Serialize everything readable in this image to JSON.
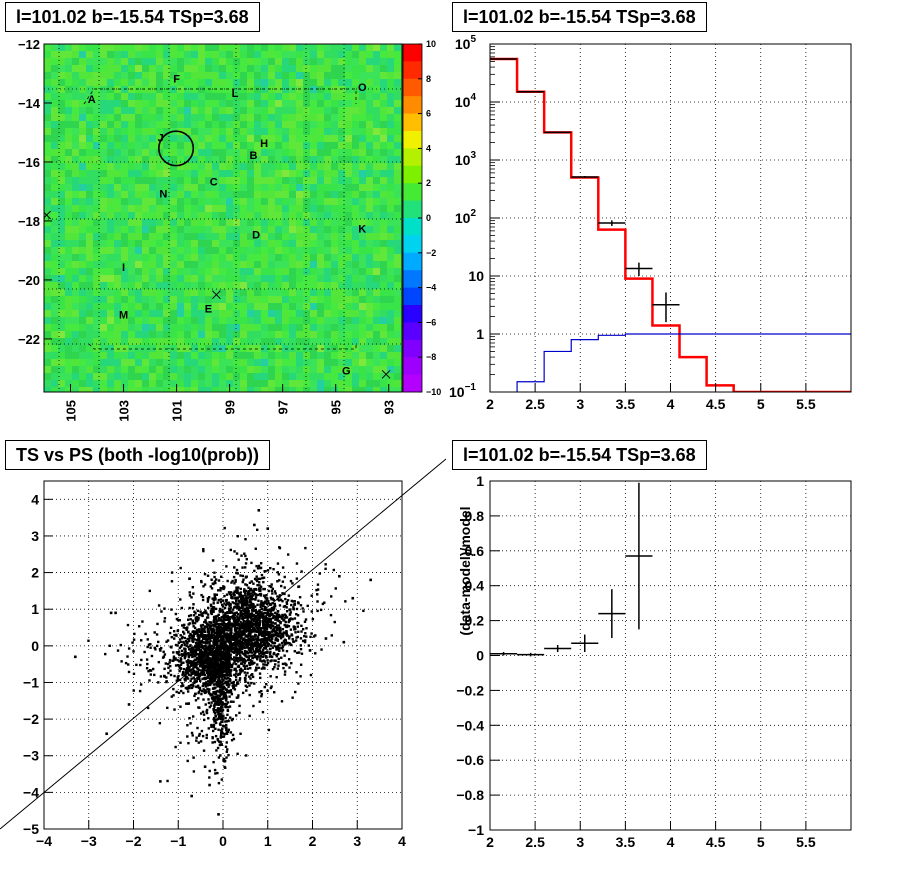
{
  "titles": {
    "map": "l=101.02 b=-15.54 TSp=3.68",
    "spectrum": "l=101.02 b=-15.54 TSp=3.68",
    "scatter": "TS vs PS (both -log10(prob))",
    "residual": "l=101.02 b=-15.54 TSp=3.68"
  },
  "chart_data": [
    {
      "id": "map",
      "type": "heatmap",
      "title": "l=101.02 b=-15.54 TSp=3.68",
      "xlim": [
        106,
        92.5
      ],
      "ylim": [
        -23.8,
        -12
      ],
      "x_ticks": [
        105,
        103,
        101,
        99,
        97,
        95,
        93
      ],
      "y_ticks": [
        -12,
        -14,
        -16,
        -18,
        -20,
        -22
      ],
      "colorbar": {
        "range": [
          -10,
          10
        ],
        "ticks": [
          10,
          8,
          6,
          4,
          2,
          0,
          -2,
          -4,
          -6,
          -8,
          -10
        ]
      },
      "labels": [
        {
          "text": "A",
          "x": 104.2,
          "y": -14.0
        },
        {
          "text": "F",
          "x": 101.0,
          "y": -13.3
        },
        {
          "text": "L",
          "x": 98.8,
          "y": -13.8
        },
        {
          "text": "O",
          "x": 94.0,
          "y": -13.6
        },
        {
          "text": "J",
          "x": 101.6,
          "y": -15.3
        },
        {
          "text": "H",
          "x": 97.7,
          "y": -15.5
        },
        {
          "text": "B",
          "x": 98.1,
          "y": -15.9
        },
        {
          "text": "C",
          "x": 99.6,
          "y": -16.8
        },
        {
          "text": "N",
          "x": 101.5,
          "y": -17.2
        },
        {
          "text": "D",
          "x": 98.0,
          "y": -18.6
        },
        {
          "text": "K",
          "x": 94.0,
          "y": -18.4
        },
        {
          "text": "I",
          "x": 103.0,
          "y": -19.7
        },
        {
          "text": "M",
          "x": 103.0,
          "y": -21.3
        },
        {
          "text": "E",
          "x": 99.8,
          "y": -21.1
        },
        {
          "text": "G",
          "x": 94.6,
          "y": -23.2
        }
      ],
      "circle": {
        "x": 101.02,
        "y": -15.54,
        "r": 0.65
      },
      "crosses": [
        {
          "x": 105.9,
          "y": -17.8
        },
        {
          "x": 99.5,
          "y": -20.5
        },
        {
          "x": 93.1,
          "y": -23.2
        }
      ]
    },
    {
      "id": "spectrum",
      "type": "line",
      "title": "l=101.02 b=-15.54 TSp=3.68",
      "xlim": [
        2,
        6
      ],
      "ylim": [
        0.1,
        100000
      ],
      "log_y": true,
      "x_ticks": [
        2,
        2.5,
        3,
        3.5,
        4,
        4.5,
        5,
        5.5
      ],
      "y_ticks": [
        {
          "v": 100000,
          "base": "10",
          "exp": "5"
        },
        {
          "v": 10000,
          "base": "10",
          "exp": "4"
        },
        {
          "v": 1000,
          "base": "10",
          "exp": "3"
        },
        {
          "v": 100,
          "base": "10",
          "exp": "2"
        },
        {
          "v": 10,
          "base": "10",
          "exp": ""
        },
        {
          "v": 1,
          "base": "1",
          "exp": ""
        },
        {
          "v": 0.1,
          "base": "10",
          "exp": "−1"
        }
      ],
      "bin_edges": [
        2.0,
        2.3,
        2.6,
        2.9,
        3.2,
        3.5,
        3.8,
        4.1,
        4.4,
        4.7,
        5.0,
        5.3,
        5.6,
        6.0
      ],
      "series": [
        {
          "values": [
            55000,
            15000,
            3000,
            500,
            63,
            9,
            1.4,
            0.4,
            0.13,
            0.1,
            0.1,
            0.1,
            0.1
          ],
          "color": "#ff0000"
        },
        {
          "values": [
            0.07,
            0.15,
            0.5,
            0.8,
            0.95,
            1.0,
            1.0,
            1.0,
            1.0,
            1.0,
            1.0,
            1.0,
            1.0
          ],
          "color": "#0000cc"
        }
      ],
      "data_points": [
        {
          "x": 2.15,
          "y": 55000,
          "xerr": 0.15,
          "ylo": 54500,
          "yhi": 55500
        },
        {
          "x": 2.45,
          "y": 15000,
          "xerr": 0.15,
          "ylo": 14800,
          "yhi": 15200
        },
        {
          "x": 2.75,
          "y": 3000,
          "xerr": 0.15,
          "ylo": 2940,
          "yhi": 3060
        },
        {
          "x": 3.05,
          "y": 510,
          "xerr": 0.15,
          "ylo": 490,
          "yhi": 530
        },
        {
          "x": 3.35,
          "y": 82,
          "xerr": 0.15,
          "ylo": 73,
          "yhi": 91
        },
        {
          "x": 3.65,
          "y": 13.5,
          "xerr": 0.15,
          "ylo": 10,
          "yhi": 17
        },
        {
          "x": 3.95,
          "y": 3.2,
          "xerr": 0.15,
          "ylo": 1.6,
          "yhi": 5.2
        }
      ]
    },
    {
      "id": "scatter",
      "type": "scatter",
      "title": "TS vs PS (both -log10(prob))",
      "xlim": [
        -4,
        4
      ],
      "ylim": [
        -5,
        4.5
      ],
      "x_ticks": [
        -4,
        -3,
        -2,
        -1,
        0,
        1,
        2,
        3,
        4
      ],
      "y_ticks": [
        4,
        3,
        2,
        1,
        0,
        -1,
        -2,
        -3,
        -4,
        -5
      ],
      "x_tick_labels": [
        "−4",
        "−3",
        "−2",
        "−1",
        "0",
        "1",
        "2",
        "3",
        "4"
      ],
      "y_tick_labels": [
        "4",
        "3",
        "2",
        "1",
        "0",
        "−1",
        "−2",
        "−3",
        "−4",
        "−5"
      ],
      "diagonal": {
        "slope": 1,
        "intercept": 0
      },
      "clusters": [
        {
          "cx": 0.55,
          "cy": 0.5,
          "sx": 0.5,
          "sy": 0.6,
          "n": 1400
        },
        {
          "cx": -0.3,
          "cy": -0.4,
          "sx": 0.35,
          "sy": 0.5,
          "n": 900
        },
        {
          "cx": -0.05,
          "cy": -1.3,
          "sx": 0.12,
          "sy": 0.8,
          "n": 350
        },
        {
          "cx": 0.05,
          "cy": 0.0,
          "sx": 0.8,
          "sy": 0.7,
          "n": 450
        },
        {
          "cx": 0.6,
          "cy": 1.8,
          "sx": 0.5,
          "sy": 0.5,
          "n": 110
        },
        {
          "cx": -1.2,
          "cy": -0.3,
          "sx": 0.6,
          "sy": 0.5,
          "n": 120
        },
        {
          "cx": 1.5,
          "cy": 1.0,
          "sx": 0.6,
          "sy": 0.6,
          "n": 90
        },
        {
          "cx": -0.4,
          "cy": -2.5,
          "sx": 0.4,
          "sy": 0.6,
          "n": 60
        }
      ],
      "outliers": [
        [
          -3.3,
          -0.3
        ],
        [
          -2.5,
          0.9
        ],
        [
          -2.4,
          0.9
        ],
        [
          -2.1,
          -1.6
        ],
        [
          -1.4,
          -3.7
        ],
        [
          -0.7,
          -4.1
        ],
        [
          -0.1,
          -4.6
        ],
        [
          -0.3,
          -3.8
        ],
        [
          0.8,
          3.7
        ],
        [
          0.7,
          3.3
        ],
        [
          1.0,
          3.2
        ],
        [
          2.6,
          1.9
        ],
        [
          3.3,
          1.8
        ],
        [
          2.9,
          1.3
        ],
        [
          2.3,
          0.2
        ],
        [
          2.7,
          0.1
        ],
        [
          -2.6,
          -2.4
        ],
        [
          -0.4,
          -3.3
        ]
      ]
    },
    {
      "id": "residual",
      "type": "scatter",
      "title": "l=101.02 b=-15.54 TSp=3.68",
      "xlim": [
        2,
        6
      ],
      "ylim": [
        -1,
        1
      ],
      "ylabel": "(data-model)/model",
      "x_ticks": [
        2,
        2.5,
        3,
        3.5,
        4,
        4.5,
        5,
        5.5
      ],
      "y_ticks": [
        1,
        0.8,
        0.6,
        0.4,
        0.2,
        0,
        -0.2,
        -0.4,
        -0.6,
        -0.8,
        -1
      ],
      "y_tick_labels": [
        "1",
        "0.8",
        "0.6",
        "0.4",
        "0.2",
        "0",
        "−0.2",
        "−0.4",
        "−0.6",
        "−0.8",
        "−1"
      ],
      "data_points": [
        {
          "x": 2.15,
          "y": 0.01,
          "xerr": 0.15,
          "ylo": 0.0,
          "yhi": 0.02
        },
        {
          "x": 2.45,
          "y": 0.005,
          "xerr": 0.15,
          "ylo": -0.005,
          "yhi": 0.015
        },
        {
          "x": 2.75,
          "y": 0.04,
          "xerr": 0.15,
          "ylo": 0.02,
          "yhi": 0.06
        },
        {
          "x": 3.05,
          "y": 0.07,
          "xerr": 0.15,
          "ylo": 0.02,
          "yhi": 0.12
        },
        {
          "x": 3.35,
          "y": 0.24,
          "xerr": 0.15,
          "ylo": 0.1,
          "yhi": 0.38
        },
        {
          "x": 3.65,
          "y": 0.57,
          "xerr": 0.15,
          "ylo": 0.15,
          "yhi": 0.99
        }
      ]
    }
  ]
}
